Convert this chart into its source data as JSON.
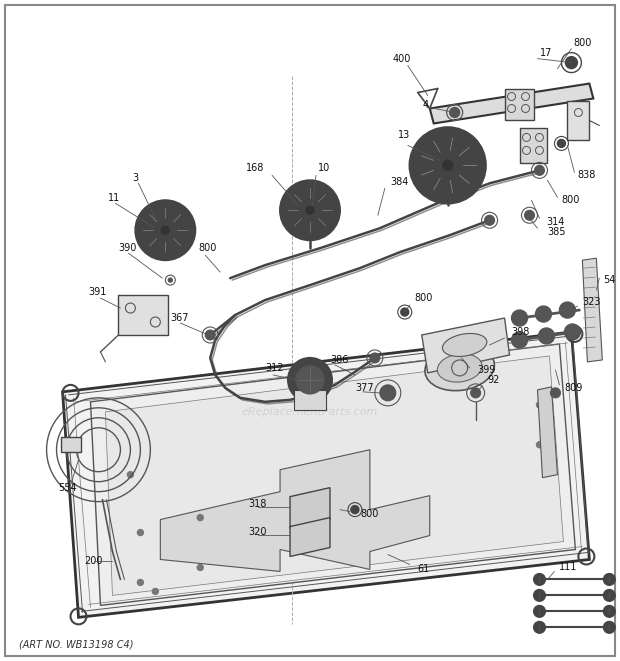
{
  "art_no": "(ART NO. WB13198 C4)",
  "watermark": "eReplacementParts.com",
  "bg_color": "#ffffff",
  "fig_width": 6.2,
  "fig_height": 6.61,
  "border_color": "#888888"
}
